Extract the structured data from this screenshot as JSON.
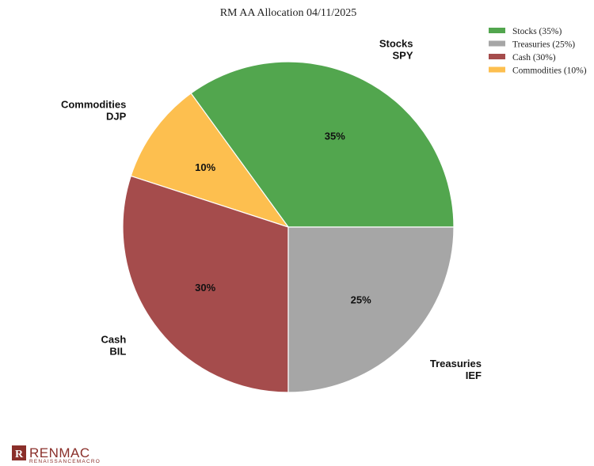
{
  "chart_data": {
    "type": "pie",
    "title": "RM AA Allocation 04/11/2025",
    "slices": [
      {
        "name": "Stocks",
        "ticker": "SPY",
        "value": 35,
        "pct_label": "35%",
        "legend": "Stocks (35%)",
        "color": "#52a64e"
      },
      {
        "name": "Commodities",
        "ticker": "DJP",
        "value": 10,
        "pct_label": "10%",
        "legend": "Commodities (10%)",
        "color": "#fdbf4f"
      },
      {
        "name": "Cash",
        "ticker": "BIL",
        "value": 30,
        "pct_label": "30%",
        "legend": "Cash (30%)",
        "color": "#a54c4c"
      },
      {
        "name": "Treasuries",
        "ticker": "IEF",
        "value": 25,
        "pct_label": "25%",
        "legend": "Treasuries (25%)",
        "color": "#a6a6a6"
      }
    ],
    "legend_order": [
      "Stocks",
      "Treasuries",
      "Cash",
      "Commodities"
    ],
    "legend_placement": "top-right"
  },
  "logo": {
    "mark": "R",
    "name": "RENMAC",
    "tagline": "RENAISSANCEMACRO"
  }
}
